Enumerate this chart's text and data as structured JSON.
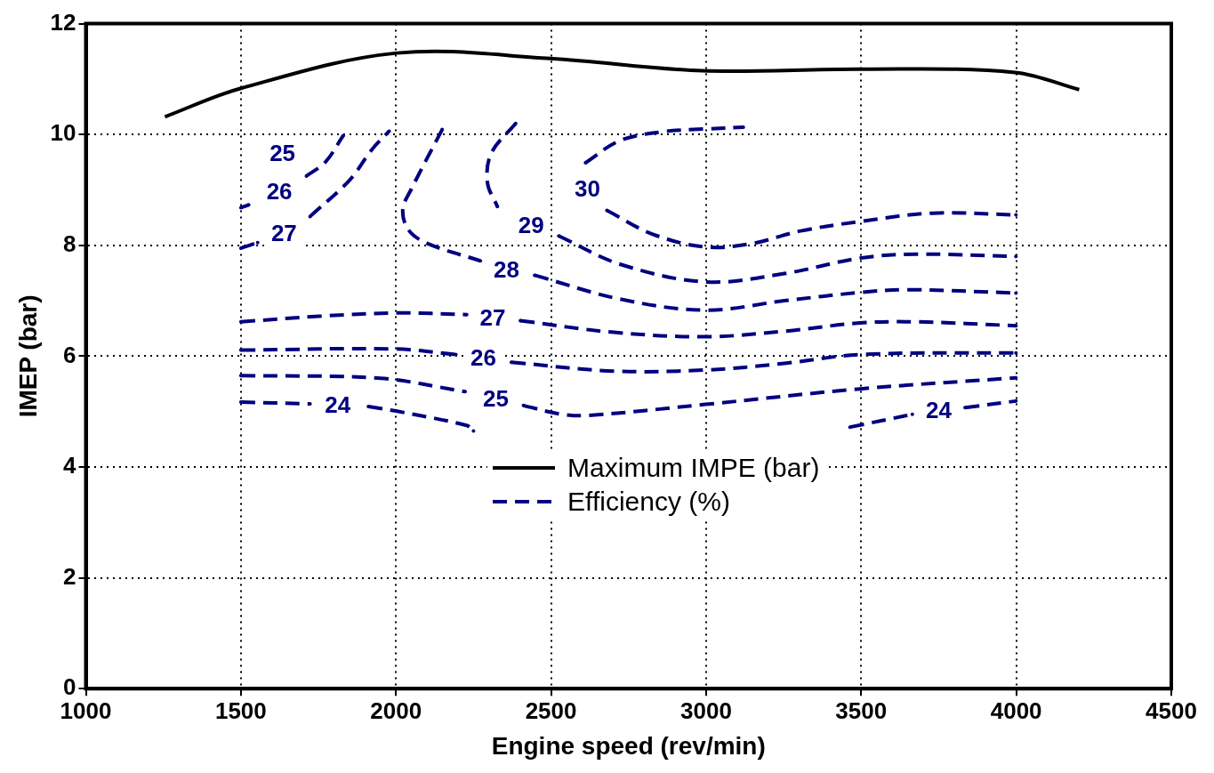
{
  "chart_data": {
    "type": "line",
    "xlabel": "Engine speed (rev/min)",
    "ylabel": "IMEP (bar)",
    "xlim": [
      1000,
      4500
    ],
    "xticks": [
      1000,
      1500,
      2000,
      2500,
      3000,
      3500,
      4000,
      4500
    ],
    "ylim": [
      0,
      12
    ],
    "yticks": [
      0,
      2,
      4,
      6,
      8,
      10,
      12
    ],
    "grid": true,
    "legend": "center",
    "marker": "none",
    "series": [
      {
        "name": "Maximum IMPE (bar)",
        "color": "#000000",
        "line_style": "solid",
        "x": [
          1255,
          1498,
          2003,
          2498,
          2987,
          3500,
          3996,
          4203
        ],
        "values": [
          10.32,
          10.83,
          11.47,
          11.37,
          11.15,
          11.18,
          11.12,
          10.81
        ]
      },
      {
        "name": "Efficiency (%)",
        "color": "#000080",
        "line_style": "dashed",
        "x": [
          1500,
          1554
        ],
        "values": [
          7.95,
          8.05
        ]
      },
      {
        "color": "#000080",
        "line_style": "dashed",
        "x": [
          1723,
          1851,
          1921,
          1978
        ],
        "values": [
          8.52,
          9.18,
          9.72,
          10.06
        ]
      },
      {
        "color": "#000080",
        "line_style": "dashed",
        "x": [
          1500,
          1525
        ],
        "values": [
          8.68,
          8.73
        ]
      },
      {
        "color": "#000080",
        "line_style": "dashed",
        "x": [
          1711,
          1772,
          1830
        ],
        "values": [
          9.25,
          9.5,
          9.98
        ]
      },
      {
        "color": "#000080",
        "line_style": "dashed",
        "x": [
          2149,
          2050,
          2022,
          2040,
          2099,
          2272
        ],
        "values": [
          10.09,
          9.02,
          8.65,
          8.28,
          8.04,
          7.72
        ]
      },
      {
        "color": "#000080",
        "line_style": "dashed",
        "x": [
          2447,
          2722,
          2998,
          3252,
          3496,
          3644,
          3999
        ],
        "values": [
          7.46,
          7.03,
          6.83,
          7.0,
          7.15,
          7.2,
          7.14
        ]
      },
      {
        "color": "#000080",
        "line_style": "dashed",
        "x": [
          2386,
          2307,
          2295,
          2327
        ],
        "values": [
          10.2,
          9.66,
          9.13,
          8.7
        ]
      },
      {
        "color": "#000080",
        "line_style": "dashed",
        "x": [
          2525,
          2722,
          2998,
          3252,
          3496,
          3676,
          3999
        ],
        "values": [
          8.17,
          7.66,
          7.34,
          7.49,
          7.77,
          7.84,
          7.8
        ]
      },
      {
        "color": "#000080",
        "line_style": "dashed",
        "x": [
          2611,
          2722,
          2860,
          2998,
          3120
        ],
        "values": [
          9.49,
          9.89,
          10.05,
          10.1,
          10.13
        ]
      },
      {
        "color": "#000080",
        "line_style": "dashed",
        "x": [
          2680,
          2828,
          2998,
          3146,
          3305,
          3496,
          3729,
          3999
        ],
        "values": [
          8.63,
          8.2,
          7.97,
          8.03,
          8.26,
          8.43,
          8.58,
          8.55
        ]
      },
      {
        "color": "#000080",
        "line_style": "dashed",
        "x": [
          1500,
          1752,
          2000,
          2228
        ],
        "values": [
          6.62,
          6.72,
          6.78,
          6.75
        ]
      },
      {
        "color": "#000080",
        "line_style": "dashed",
        "x": [
          2401,
          2703,
          2998,
          3252,
          3496,
          3676,
          3999
        ],
        "values": [
          6.64,
          6.43,
          6.35,
          6.45,
          6.6,
          6.62,
          6.55
        ]
      },
      {
        "color": "#000080",
        "line_style": "dashed",
        "x": [
          1500,
          2000,
          2193
        ],
        "values": [
          6.11,
          6.13,
          6.03
        ]
      },
      {
        "color": "#000080",
        "line_style": "dashed",
        "x": [
          2372,
          2703,
          2998,
          3252,
          3496,
          3999
        ],
        "values": [
          5.89,
          5.73,
          5.75,
          5.87,
          6.03,
          6.06
        ]
      },
      {
        "color": "#000080",
        "line_style": "dashed",
        "x": [
          1500,
          1950,
          2223
        ],
        "values": [
          5.65,
          5.6,
          5.36
        ]
      },
      {
        "color": "#000080",
        "line_style": "dashed",
        "x": [
          2411,
          2525,
          2617,
          2998,
          3496,
          3999
        ],
        "values": [
          5.11,
          4.96,
          4.93,
          5.13,
          5.41,
          5.61
        ]
      },
      {
        "color": "#000080",
        "line_style": "dashed",
        "x": [
          1500,
          1723
        ],
        "values": [
          5.17,
          5.14
        ]
      },
      {
        "color": "#000080",
        "line_style": "dashed",
        "x": [
          1911,
          2000,
          2228,
          2250
        ],
        "values": [
          5.09,
          5.01,
          4.75,
          4.65
        ]
      },
      {
        "color": "#000080",
        "line_style": "dashed",
        "x": [
          3464,
          3665
        ],
        "values": [
          4.72,
          4.95
        ]
      },
      {
        "color": "#000080",
        "line_style": "dashed",
        "x": [
          3835,
          3999
        ],
        "values": [
          5.07,
          5.19
        ]
      }
    ],
    "annotations": [
      {
        "text": "25",
        "x": 1634,
        "y": 9.64
      },
      {
        "text": "26",
        "x": 1624,
        "y": 8.94
      },
      {
        "text": "27",
        "x": 1639,
        "y": 8.2
      },
      {
        "text": "29",
        "x": 2436,
        "y": 8.33
      },
      {
        "text": "30",
        "x": 2617,
        "y": 9.0
      },
      {
        "text": "28",
        "x": 2356,
        "y": 7.53
      },
      {
        "text": "27",
        "x": 2312,
        "y": 6.67
      },
      {
        "text": "26",
        "x": 2282,
        "y": 5.95
      },
      {
        "text": "25",
        "x": 2322,
        "y": 5.2
      },
      {
        "text": "24",
        "x": 1812,
        "y": 5.1
      },
      {
        "text": "24",
        "x": 3750,
        "y": 5.0
      }
    ]
  }
}
